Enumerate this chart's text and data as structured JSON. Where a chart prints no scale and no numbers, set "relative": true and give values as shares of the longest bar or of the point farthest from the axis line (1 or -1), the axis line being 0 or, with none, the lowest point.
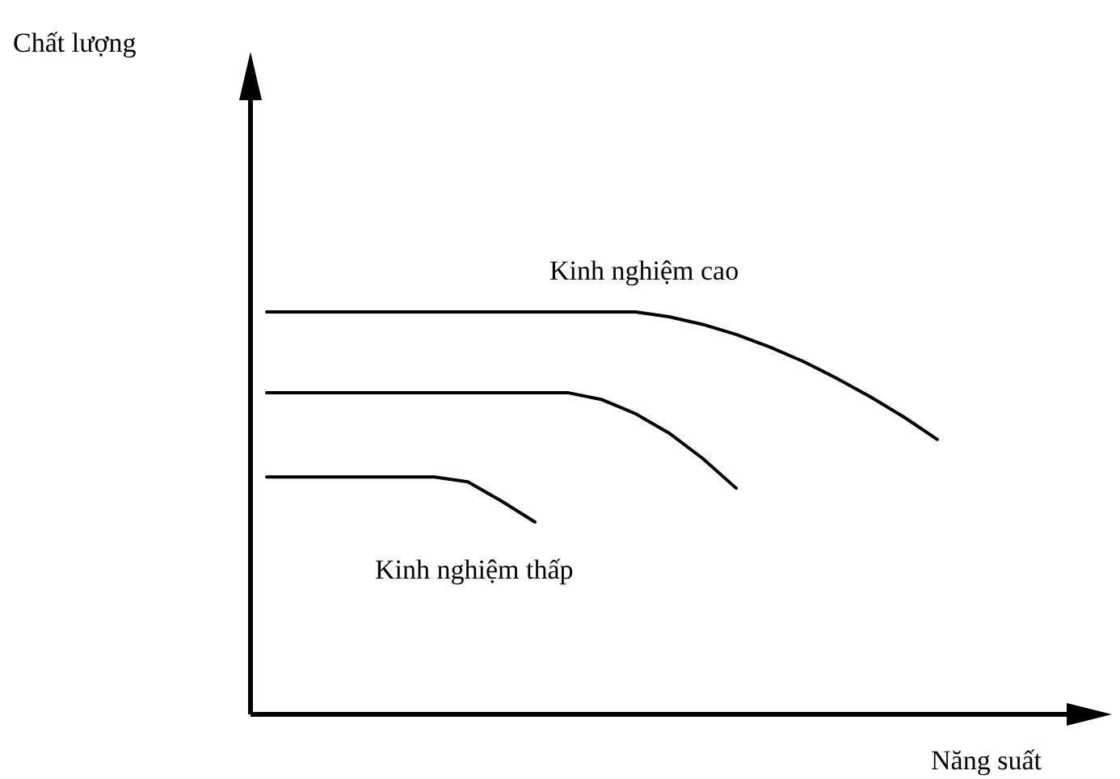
{
  "chart_data": {
    "type": "line",
    "relative": true,
    "xlabel": "Năng suất",
    "annotations": [
      "Chất lượng"
    ],
    "legend": false,
    "grid": false,
    "marker": "none",
    "line_style": "solid",
    "categories": [
      null,
      null,
      null,
      null,
      null,
      null,
      null,
      null,
      null,
      null,
      null,
      null,
      null,
      null,
      null,
      null,
      null,
      null,
      null,
      null,
      null
    ],
    "series": [
      {
        "name": "Kinh nghiệm cao",
        "color": "#000000",
        "values": [
          1,
          1,
          1,
          1,
          1,
          1,
          1,
          1,
          1,
          1,
          1,
          1,
          0.988,
          0.969,
          0.944,
          0.913,
          0.877,
          0.835,
          0.789,
          0.739,
          0.683
        ]
      },
      {
        "color": "#000000",
        "values": [
          0.799,
          0.799,
          0.799,
          0.799,
          0.799,
          0.799,
          0.799,
          0.799,
          0.799,
          0.799,
          0.782,
          0.747,
          0.699,
          0.636,
          0.562,
          null,
          null,
          null,
          null,
          null,
          null
        ]
      },
      {
        "name": "Kinh nghiệm thấp",
        "color": "#000000",
        "values": [
          0.59,
          0.59,
          0.59,
          0.59,
          0.59,
          0.59,
          0.578,
          0.53,
          0.478,
          null,
          null,
          null,
          null,
          null,
          null,
          null,
          null,
          null,
          null,
          null,
          null
        ]
      }
    ]
  }
}
